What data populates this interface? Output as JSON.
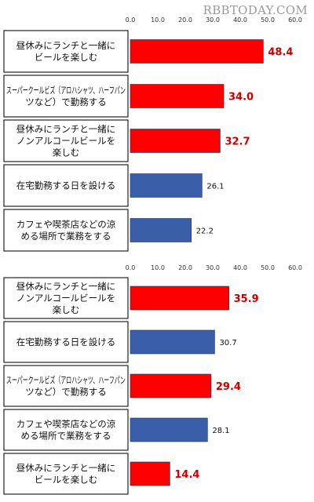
{
  "watermark": "RBBTODAY.COM",
  "chart_data": [
    {
      "type": "bar",
      "orientation": "horizontal",
      "xlim": [
        0,
        60
      ],
      "ticks": [
        "0.0",
        "10.0",
        "20.0",
        "30.0",
        "40.0",
        "50.0",
        "60.0"
      ],
      "grid": false,
      "legend": "none",
      "bars": [
        {
          "lines": [
            "昼休みにランチと一緒に",
            "ビールを楽しむ"
          ],
          "value": 48.4,
          "label": "48.4",
          "color": "#ff0000"
        },
        {
          "lines": [
            "スーパークールビズ（アロハシャツ、ハーフパン",
            "ツなど）で勤務する"
          ],
          "value": 34.0,
          "label": "34.0",
          "color": "#ff0000"
        },
        {
          "lines": [
            "昼休みにランチと一緒に",
            "ノンアルコールビールを",
            "楽しむ"
          ],
          "value": 32.7,
          "label": "32.7",
          "color": "#ff0000"
        },
        {
          "lines": [
            "在宅勤務する日を設ける"
          ],
          "value": 26.1,
          "label": "26.1",
          "color": "#3a5ea8"
        },
        {
          "lines": [
            "カフェや喫茶店などの涼",
            "める場所で業務をする"
          ],
          "value": 22.2,
          "label": "22.2",
          "color": "#3a5ea8"
        }
      ]
    },
    {
      "type": "bar",
      "orientation": "horizontal",
      "xlim": [
        0,
        60
      ],
      "ticks": [
        "0.0",
        "10.0",
        "20.0",
        "30.0",
        "40.0",
        "50.0",
        "60.0"
      ],
      "grid": false,
      "legend": "none",
      "bars": [
        {
          "lines": [
            "昼休みにランチと一緒に",
            "ノンアルコールビールを",
            "楽しむ"
          ],
          "value": 35.9,
          "label": "35.9",
          "color": "#ff0000"
        },
        {
          "lines": [
            "在宅勤務する日を設ける"
          ],
          "value": 30.7,
          "label": "30.7",
          "color": "#3a5ea8"
        },
        {
          "lines": [
            "スーパークールビズ（アロハシャツ、ハーフパン",
            "ツなど）で勤務する"
          ],
          "value": 29.4,
          "label": "29.4",
          "color": "#ff0000"
        },
        {
          "lines": [
            "カフェや喫茶店などの涼",
            "める場所で業務をする"
          ],
          "value": 28.1,
          "label": "28.1",
          "color": "#3a5ea8"
        },
        {
          "lines": [
            "昼休みにランチと一緒に",
            "ビールを楽しむ"
          ],
          "value": 14.4,
          "label": "14.4",
          "color": "#ff0000"
        }
      ]
    }
  ]
}
